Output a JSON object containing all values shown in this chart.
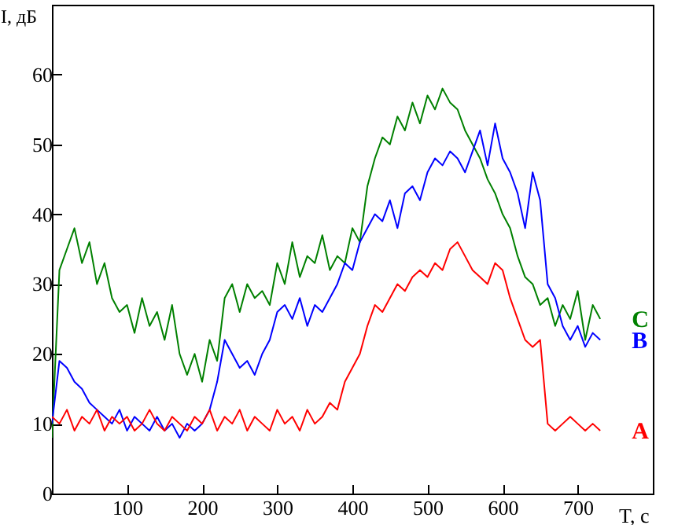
{
  "chart_data": {
    "type": "line",
    "xlabel": "T, с",
    "ylabel": "I, дБ",
    "xlim": [
      0,
      800
    ],
    "ylim": [
      0,
      70
    ],
    "xticks": [
      100,
      200,
      300,
      400,
      500,
      600,
      700
    ],
    "yticks": [
      0,
      10,
      20,
      30,
      40,
      50,
      60
    ],
    "grid": false,
    "marker": "none",
    "line_style": "solid",
    "x": [
      0,
      10,
      20,
      30,
      40,
      50,
      60,
      70,
      80,
      90,
      100,
      110,
      120,
      130,
      140,
      150,
      160,
      170,
      180,
      190,
      200,
      210,
      220,
      230,
      240,
      250,
      260,
      270,
      280,
      290,
      300,
      310,
      320,
      330,
      340,
      350,
      360,
      370,
      380,
      390,
      400,
      410,
      420,
      430,
      440,
      450,
      460,
      470,
      480,
      490,
      500,
      510,
      520,
      530,
      540,
      550,
      560,
      570,
      580,
      590,
      600,
      610,
      620,
      630,
      640,
      650,
      660,
      670,
      680,
      690,
      700,
      710,
      720,
      730
    ],
    "series": [
      {
        "name": "C",
        "color": "#008000",
        "values": [
          8,
          32,
          35,
          38,
          33,
          36,
          30,
          33,
          28,
          26,
          27,
          23,
          28,
          24,
          26,
          22,
          27,
          20,
          17,
          20,
          16,
          22,
          19,
          28,
          30,
          26,
          30,
          28,
          29,
          27,
          33,
          30,
          36,
          31,
          34,
          33,
          37,
          32,
          34,
          33,
          38,
          36,
          44,
          48,
          51,
          50,
          54,
          52,
          56,
          53,
          57,
          55,
          58,
          56,
          55,
          52,
          50,
          48,
          45,
          43,
          40,
          38,
          34,
          31,
          30,
          27,
          28,
          24,
          27,
          25,
          29,
          22,
          27,
          25
        ]
      },
      {
        "name": "B",
        "color": "#0000ff",
        "values": [
          10,
          19,
          18,
          16,
          15,
          13,
          12,
          11,
          10,
          12,
          9,
          11,
          10,
          9,
          11,
          9,
          10,
          8,
          10,
          9,
          10,
          12,
          16,
          22,
          20,
          18,
          19,
          17,
          20,
          22,
          26,
          27,
          25,
          28,
          24,
          27,
          26,
          28,
          30,
          33,
          32,
          36,
          38,
          40,
          39,
          42,
          38,
          43,
          44,
          42,
          46,
          48,
          47,
          49,
          48,
          46,
          49,
          52,
          47,
          53,
          48,
          46,
          43,
          38,
          46,
          42,
          30,
          28,
          24,
          22,
          24,
          21,
          23,
          22
        ]
      },
      {
        "name": "A",
        "color": "#ff0000",
        "values": [
          11,
          10,
          12,
          9,
          11,
          10,
          12,
          9,
          11,
          10,
          11,
          9,
          10,
          12,
          10,
          9,
          11,
          10,
          9,
          11,
          10,
          12,
          9,
          11,
          10,
          12,
          9,
          11,
          10,
          9,
          12,
          10,
          11,
          9,
          12,
          10,
          11,
          13,
          12,
          16,
          18,
          20,
          24,
          27,
          26,
          28,
          30,
          29,
          31,
          32,
          31,
          33,
          32,
          35,
          36,
          34,
          32,
          31,
          30,
          33,
          32,
          28,
          25,
          22,
          21,
          22,
          10,
          9,
          10,
          11,
          10,
          9,
          10,
          9
        ]
      }
    ]
  }
}
